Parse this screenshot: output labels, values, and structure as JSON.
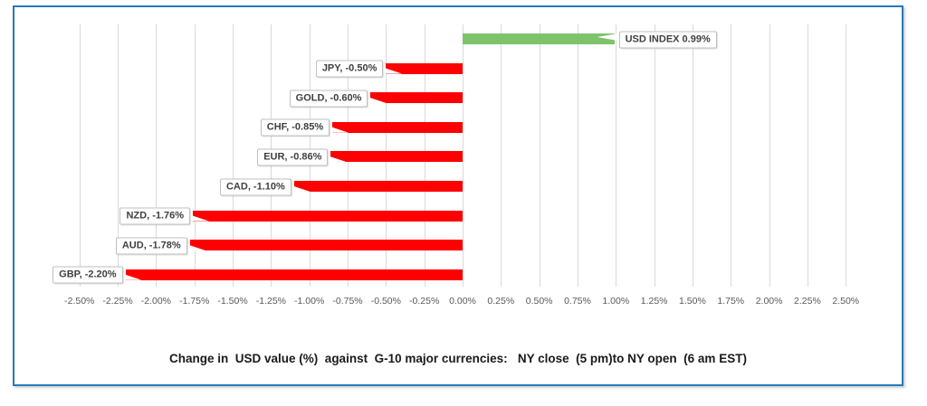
{
  "chart_data": {
    "type": "bar",
    "orientation": "horizontal",
    "title": "Change in  USD value (%)  against  G-10 major currencies:   NY close  (5 pm)to NY open  (6 am EST)",
    "categories": [
      "USD INDEX",
      "JPY",
      "GOLD",
      "CHF",
      "EUR",
      "CAD",
      "NZD",
      "AUD",
      "GBP"
    ],
    "values": [
      0.99,
      -0.5,
      -0.6,
      -0.85,
      -0.86,
      -1.1,
      -1.76,
      -1.78,
      -2.2
    ],
    "data_labels": [
      "USD INDEX 0.99%",
      "JPY, -0.50%",
      "GOLD, -0.60%",
      "CHF, -0.85%",
      "EUR, -0.86%",
      "CAD, -1.10%",
      "NZD, -1.76%",
      "AUD, -1.78%",
      "GBP, -2.20%"
    ],
    "xlim": [
      -2.5,
      2.5
    ],
    "xtick_step": 0.25,
    "xticks": [
      {
        "value": -2.5,
        "label": "-2.50%"
      },
      {
        "value": -2.25,
        "label": "-2.25%"
      },
      {
        "value": -2.0,
        "label": "-2.00%"
      },
      {
        "value": -1.75,
        "label": "-1.75%"
      },
      {
        "value": -1.5,
        "label": "-1.50%"
      },
      {
        "value": -1.25,
        "label": "-1.25%"
      },
      {
        "value": -1.0,
        "label": "-1.00%"
      },
      {
        "value": -0.75,
        "label": "-0.75%"
      },
      {
        "value": -0.5,
        "label": "-0.50%"
      },
      {
        "value": -0.25,
        "label": "-0.25%"
      },
      {
        "value": 0.0,
        "label": "0.00%"
      },
      {
        "value": 0.25,
        "label": "0.25%"
      },
      {
        "value": 0.5,
        "label": "0.50%"
      },
      {
        "value": 0.75,
        "label": "0.75%"
      },
      {
        "value": 1.0,
        "label": "1.00%"
      },
      {
        "value": 1.25,
        "label": "1.25%"
      },
      {
        "value": 1.5,
        "label": "1.50%"
      },
      {
        "value": 1.75,
        "label": "1.75%"
      },
      {
        "value": 2.0,
        "label": "2.00%"
      },
      {
        "value": 2.25,
        "label": "2.25%"
      },
      {
        "value": 2.5,
        "label": "2.50%"
      }
    ],
    "grid": true,
    "legend": false,
    "colors": {
      "positive_bar": "#7CC36A",
      "negative_bar": "#FF0000",
      "gridline": "#D9D9D9",
      "axis_text": "#595959",
      "callout_border": "#BFBFBF",
      "callout_text": "#3F3F3F",
      "frame_border": "#2879BE",
      "title_text": "#1A1A1A"
    }
  }
}
